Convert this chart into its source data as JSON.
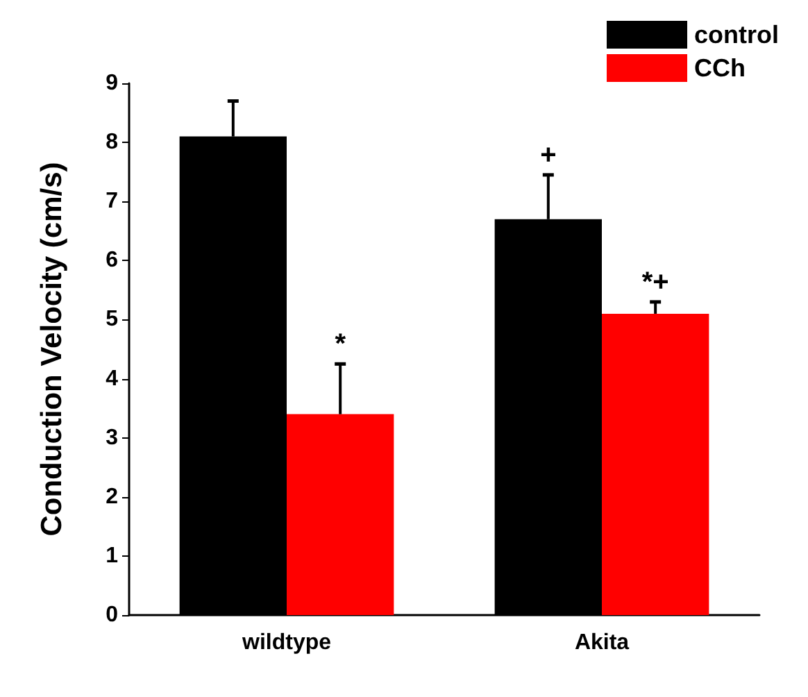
{
  "chart_data": {
    "type": "bar",
    "ylabel": "Conduction Velocity (cm/s)",
    "categories": [
      "wildtype",
      "Akita"
    ],
    "series": [
      {
        "name": "control",
        "color": "#000000",
        "values": [
          8.1,
          6.7
        ],
        "errors": [
          0.6,
          0.75
        ]
      },
      {
        "name": "CCh",
        "color": "#ff0000",
        "values": [
          3.4,
          5.1
        ],
        "errors": [
          0.85,
          0.2
        ]
      }
    ],
    "ylim": [
      0,
      9
    ],
    "yticks": [
      0,
      1,
      2,
      3,
      4,
      5,
      6,
      7,
      8,
      9
    ],
    "legend": "top right",
    "annotations": [
      {
        "text": "*",
        "x": "wildtype",
        "y": 3.4
      },
      {
        "text": "+",
        "x": "Akita",
        "y": 6.7
      },
      {
        "text": "*+",
        "x": "Akita",
        "y": 5.1
      }
    ]
  }
}
